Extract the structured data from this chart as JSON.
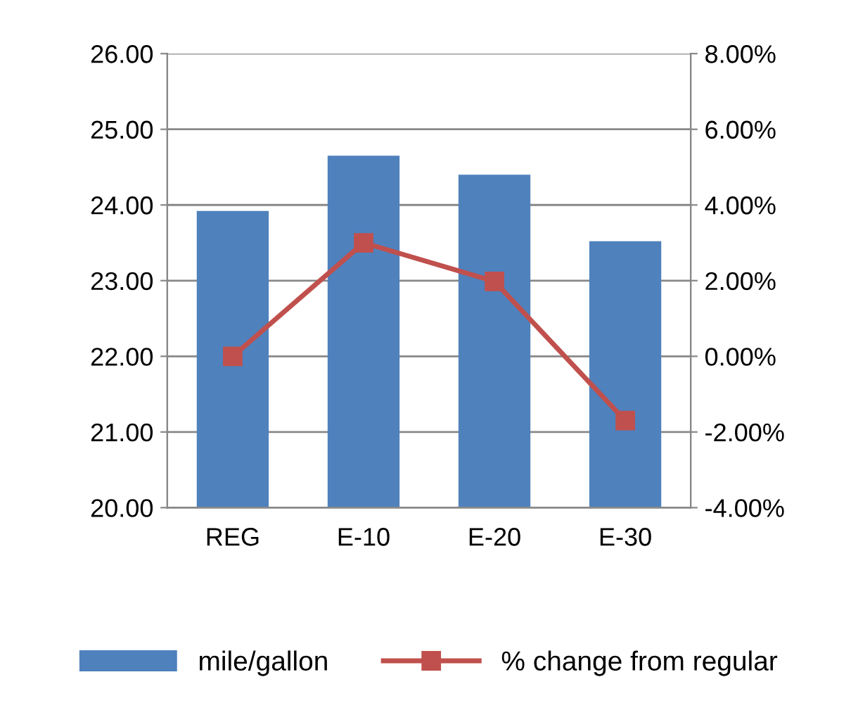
{
  "chart_data": {
    "type": "bar",
    "categories": [
      "REG",
      "E-10",
      "E-20",
      "E-30"
    ],
    "series": [
      {
        "name": "mile/gallon",
        "color": "#4f81bd",
        "values": [
          23.92,
          24.65,
          24.4,
          23.52
        ]
      },
      {
        "name": "% change from regular",
        "type": "line",
        "axis": "y2",
        "color": "#c0504d",
        "values": [
          0.0,
          3.0,
          1.98,
          -1.7
        ]
      }
    ],
    "ylim": [
      20,
      26
    ],
    "yticks": [
      {
        "value": 20,
        "label": "20.00"
      },
      {
        "value": 21,
        "label": "21.00"
      },
      {
        "value": 22,
        "label": "22.00"
      },
      {
        "value": 23,
        "label": "23.00"
      },
      {
        "value": 24,
        "label": "24.00"
      },
      {
        "value": 25,
        "label": "25.00"
      },
      {
        "value": 26,
        "label": "26.00"
      }
    ],
    "y2lim": [
      -4,
      8
    ],
    "y2ticks": [
      {
        "value": -4,
        "label": "-4.00%"
      },
      {
        "value": -2,
        "label": "-2.00%"
      },
      {
        "value": 0,
        "label": "0.00%"
      },
      {
        "value": 2,
        "label": "2.00%"
      },
      {
        "value": 4,
        "label": "4.00%"
      },
      {
        "value": 6,
        "label": "6.00%"
      },
      {
        "value": 8,
        "label": "8.00%"
      }
    ],
    "grid": "y",
    "legend": "bottom",
    "marker": "square",
    "line_style": "solid"
  }
}
